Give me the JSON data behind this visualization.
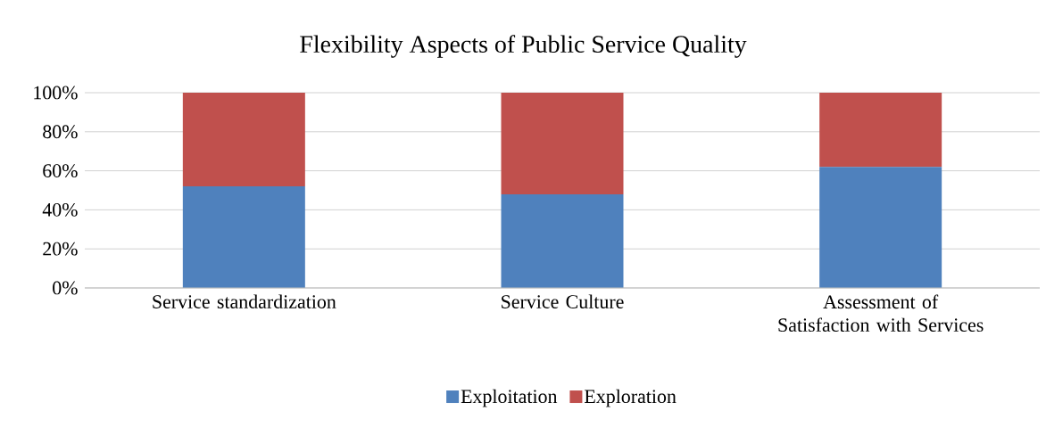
{
  "chart_data": {
    "type": "bar",
    "title": "Flexibility Aspects of Public Service Quality",
    "categories": [
      "Service standardization",
      "Service Culture",
      "Assessment of Satisfaction with Services"
    ],
    "series": [
      {
        "name": "Exploitation",
        "color": "#4f81bd",
        "values": [
          52,
          48,
          62
        ]
      },
      {
        "name": "Exploration",
        "color": "#c0504d",
        "values": [
          48,
          52,
          38
        ]
      }
    ],
    "stacked": true,
    "ylim": [
      0,
      100
    ],
    "yticks": [
      {
        "value": 0,
        "label": "0%"
      },
      {
        "value": 20,
        "label": "20%"
      },
      {
        "value": 40,
        "label": "40%"
      },
      {
        "value": 60,
        "label": "60%"
      },
      {
        "value": 80,
        "label": "80%"
      },
      {
        "value": 100,
        "label": "100%"
      }
    ],
    "grid": "y",
    "legend": "bottom"
  }
}
